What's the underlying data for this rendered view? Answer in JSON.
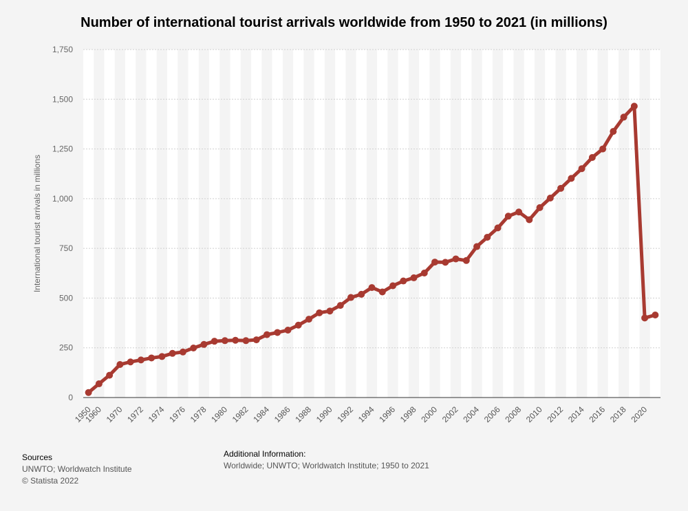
{
  "title": "Number of international tourist arrivals worldwide from 1950 to 2021 (in millions)",
  "footer": {
    "sources_heading": "Sources",
    "sources_text": "UNWTO; Worldwatch Institute",
    "copyright": "© Statista 2022",
    "additional_heading": "Additional Information:",
    "additional_text": "Worldwide; UNWTO; Worldwatch Institute; 1950 to 2021"
  },
  "colors": {
    "series": "#a83a31",
    "band": "#ffffff",
    "grid": "#cfcfcf"
  },
  "chart_data": {
    "type": "line",
    "ylabel": "International tourist arrivals in millions",
    "xlabel": "",
    "ylim": [
      0,
      1750
    ],
    "yticks": [
      0,
      250,
      500,
      750,
      1000,
      1250,
      1500,
      1750
    ],
    "ytick_labels": [
      "0",
      "250",
      "500",
      "750",
      "1,000",
      "1,250",
      "1,500",
      "1,750"
    ],
    "xtick_labels": [
      "1950",
      "1960",
      "1970",
      "1972",
      "1974",
      "1976",
      "1978",
      "1980",
      "1982",
      "1984",
      "1986",
      "1988",
      "1990",
      "1992",
      "1994",
      "1996",
      "1998",
      "2000",
      "2002",
      "2004",
      "2006",
      "2008",
      "2010",
      "2012",
      "2014",
      "2016",
      "2018",
      "2020"
    ],
    "categories": [
      "1950",
      "1960",
      "1965",
      "1970",
      "1971",
      "1972",
      "1973",
      "1974",
      "1975",
      "1976",
      "1977",
      "1978",
      "1979",
      "1980",
      "1981",
      "1982",
      "1983",
      "1984",
      "1985",
      "1986",
      "1987",
      "1988",
      "1989",
      "1990",
      "1991",
      "1992",
      "1993",
      "1994",
      "1995",
      "1996",
      "1997",
      "1998",
      "1999",
      "2000",
      "2001",
      "2002",
      "2003",
      "2004",
      "2005",
      "2006",
      "2007",
      "2008",
      "2009",
      "2010",
      "2011",
      "2012",
      "2013",
      "2014",
      "2015",
      "2016",
      "2017",
      "2018",
      "2019",
      "2020",
      "2021"
    ],
    "series": [
      {
        "values": [
          25,
          69,
          112,
          166,
          179,
          189,
          199,
          206,
          222,
          229,
          249,
          267,
          283,
          286,
          288,
          286,
          290,
          316,
          327,
          339,
          364,
          394,
          426,
          435,
          463,
          503,
          519,
          553,
          531,
          562,
          586,
          602,
          626,
          681,
          680,
          697,
          689,
          759,
          806,
          853,
          912,
          933,
          894,
          955,
          1003,
          1052,
          1102,
          1151,
          1207,
          1250,
          1338,
          1410,
          1465,
          400,
          415
        ]
      }
    ],
    "grid": true,
    "legend": "none"
  }
}
